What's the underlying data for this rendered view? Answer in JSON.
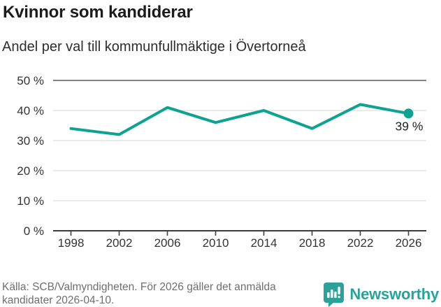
{
  "colors": {
    "accent": "#0ea293",
    "brand": "#2aa29a",
    "grid_light": "#dedede",
    "grid_top": "#848484",
    "axis": "#3c3c3c",
    "tick_text": "#333333",
    "annotation_text": "#222222"
  },
  "chart_data": {
    "type": "line",
    "title": "Kvinnor som kandiderar",
    "subtitle": "Andel per val till kommunfullmäktige i Övertorneå",
    "x": [
      1998,
      2002,
      2006,
      2010,
      2014,
      2018,
      2022,
      2026
    ],
    "values": [
      34,
      32,
      41,
      36,
      40,
      34,
      42,
      39
    ],
    "xtick_labels": [
      "1998",
      "2002",
      "2006",
      "2010",
      "2014",
      "2018",
      "2022",
      "2026"
    ],
    "ytick_values": [
      0,
      10,
      20,
      30,
      40,
      50
    ],
    "ytick_labels": [
      "0 %",
      "10 %",
      "20 %",
      "30 %",
      "40 %",
      "50 %"
    ],
    "ylim": [
      0,
      50
    ],
    "xlabel": "",
    "ylabel": "",
    "grid": "horizontal",
    "legend": "none",
    "last_value_label": "39 %"
  },
  "footer": {
    "source_lines": [
      "Källa: SCB/Valmyndigheten. För 2026 gäller det anmälda",
      "kandidater 2026-04-10."
    ],
    "brand_name": "Newsworthy"
  }
}
